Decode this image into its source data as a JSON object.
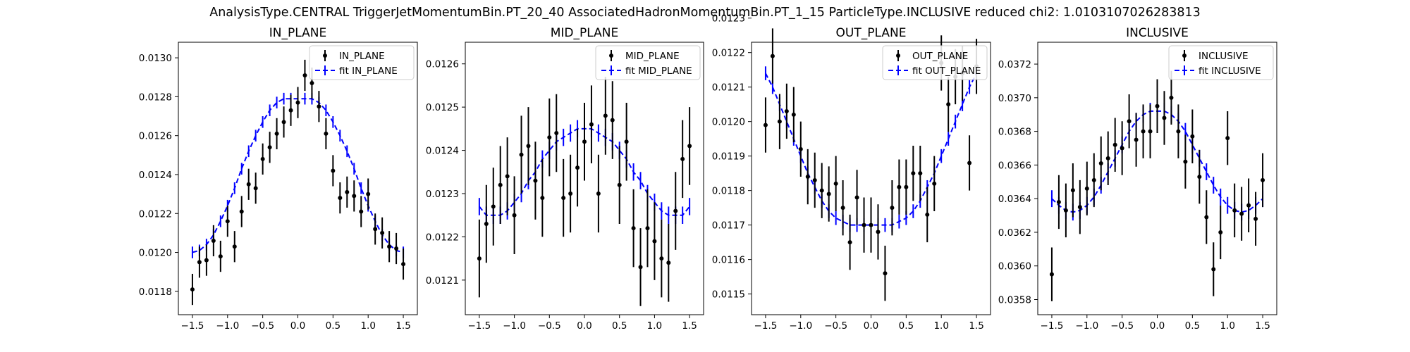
{
  "suptitle": "AnalysisType.CENTRAL TriggerJetMomentumBin.PT_20_40 AssociatedHadronMomentumBin.PT_1_15 ParticleType.INCLUSIVE reduced chi2: 1.0103107026283813",
  "colors": {
    "data": "#000000",
    "fit": "#0000ff"
  },
  "chart_data": [
    {
      "type": "scatter",
      "title": "IN_PLANE",
      "xlim": [
        -1.7,
        1.7
      ],
      "ylim": [
        0.01168,
        0.01308
      ],
      "xticks": [
        -1.5,
        -1.0,
        -0.5,
        0.0,
        0.5,
        1.0,
        1.5
      ],
      "xtick_labels": [
        "−1.5",
        "−1.0",
        "−0.5",
        "0.0",
        "0.5",
        "1.0",
        "1.5"
      ],
      "yticks": [
        0.0118,
        0.012,
        0.0122,
        0.0124,
        0.0126,
        0.0128,
        0.013
      ],
      "ytick_labels": [
        "0.0118",
        "0.0120",
        "0.0122",
        "0.0124",
        "0.0126",
        "0.0128",
        "0.0130"
      ],
      "legend_position": "top-right",
      "legend": [
        "IN_PLANE",
        "fit IN_PLANE"
      ],
      "x": [
        -1.5,
        -1.4,
        -1.3,
        -1.2,
        -1.1,
        -1.0,
        -0.9,
        -0.8,
        -0.7,
        -0.6,
        -0.5,
        -0.4,
        -0.3,
        -0.2,
        -0.1,
        0.0,
        0.1,
        0.2,
        0.3,
        0.4,
        0.5,
        0.6,
        0.7,
        0.8,
        0.9,
        1.0,
        1.1,
        1.2,
        1.3,
        1.4,
        1.5
      ],
      "series": [
        {
          "name": "IN_PLANE",
          "values": [
            0.01181,
            0.01195,
            0.01196,
            0.01206,
            0.01198,
            0.01216,
            0.01203,
            0.01221,
            0.01235,
            0.01233,
            0.01248,
            0.01254,
            0.01261,
            0.01267,
            0.01273,
            0.01277,
            0.01291,
            0.01287,
            0.01275,
            0.01261,
            0.01242,
            0.01228,
            0.01231,
            0.01229,
            0.01221,
            0.0123,
            0.01212,
            0.0121,
            0.01203,
            0.01202,
            0.01194
          ],
          "errors": [
            8e-05,
            8e-05,
            8e-05,
            8e-05,
            8e-05,
            8e-05,
            8e-05,
            8e-05,
            8e-05,
            8e-05,
            8e-05,
            8e-05,
            8e-05,
            8e-05,
            8e-05,
            8e-05,
            8e-05,
            8e-05,
            8e-05,
            8e-05,
            8e-05,
            8e-05,
            8e-05,
            8e-05,
            8e-05,
            8e-05,
            8e-05,
            8e-05,
            8e-05,
            8e-05,
            8e-05
          ]
        },
        {
          "name": "fit IN_PLANE",
          "values": [
            0.012,
            0.01201,
            0.01204,
            0.01209,
            0.01216,
            0.01224,
            0.01233,
            0.01243,
            0.01252,
            0.0126,
            0.01267,
            0.01273,
            0.01277,
            0.01279,
            0.01279,
            0.01279,
            0.01279,
            0.01279,
            0.01277,
            0.01273,
            0.01267,
            0.0126,
            0.01252,
            0.01243,
            0.01233,
            0.01224,
            0.01216,
            0.01209,
            0.01204,
            0.01201,
            0.012
          ],
          "errors": [
            3e-05,
            3e-05,
            3e-05,
            3e-05,
            3e-05,
            3e-05,
            3e-05,
            3e-05,
            3e-05,
            3e-05,
            3e-05,
            3e-05,
            3e-05,
            3e-05,
            3e-05,
            3e-05,
            3e-05,
            3e-05,
            3e-05,
            3e-05,
            3e-05,
            3e-05,
            3e-05,
            3e-05,
            3e-05,
            3e-05,
            3e-05,
            3e-05,
            3e-05,
            3e-05,
            3e-05
          ]
        }
      ]
    },
    {
      "type": "scatter",
      "title": "MID_PLANE",
      "xlim": [
        -1.7,
        1.7
      ],
      "ylim": [
        0.01202,
        0.01265
      ],
      "xticks": [
        -1.5,
        -1.0,
        -0.5,
        0.0,
        0.5,
        1.0,
        1.5
      ],
      "xtick_labels": [
        "−1.5",
        "−1.0",
        "−0.5",
        "0.0",
        "0.5",
        "1.0",
        "1.5"
      ],
      "yticks": [
        0.0121,
        0.0122,
        0.0123,
        0.0124,
        0.0125,
        0.0126
      ],
      "ytick_labels": [
        "0.0121",
        "0.0122",
        "0.0123",
        "0.0124",
        "0.0125",
        "0.0126"
      ],
      "legend_position": "top-right",
      "legend": [
        "MID_PLANE",
        "fit MID_PLANE"
      ],
      "x": [
        -1.5,
        -1.4,
        -1.3,
        -1.2,
        -1.1,
        -1.0,
        -0.9,
        -0.8,
        -0.7,
        -0.6,
        -0.5,
        -0.4,
        -0.3,
        -0.2,
        -0.1,
        0.0,
        0.1,
        0.2,
        0.3,
        0.4,
        0.5,
        0.6,
        0.7,
        0.8,
        0.9,
        1.0,
        1.1,
        1.2,
        1.3,
        1.4,
        1.5
      ],
      "series": [
        {
          "name": "MID_PLANE",
          "values": [
            0.01215,
            0.01223,
            0.01227,
            0.01232,
            0.01234,
            0.01225,
            0.01239,
            0.01241,
            0.01233,
            0.01229,
            0.01243,
            0.01244,
            0.01229,
            0.0123,
            0.01236,
            0.01242,
            0.01246,
            0.0123,
            0.01248,
            0.01247,
            0.01232,
            0.01242,
            0.01222,
            0.01213,
            0.01222,
            0.01219,
            0.01215,
            0.01214,
            0.01226,
            0.01238,
            0.01241
          ],
          "errors": [
            9e-05,
            9e-05,
            9e-05,
            9e-05,
            9e-05,
            9e-05,
            9e-05,
            9e-05,
            9e-05,
            9e-05,
            9e-05,
            9e-05,
            9e-05,
            9e-05,
            9e-05,
            9e-05,
            9e-05,
            9e-05,
            9e-05,
            9e-05,
            9e-05,
            9e-05,
            9e-05,
            9e-05,
            9e-05,
            9e-05,
            9e-05,
            9e-05,
            9e-05,
            9e-05,
            9e-05
          ]
        },
        {
          "name": "fit MID_PLANE",
          "values": [
            0.01227,
            0.01225,
            0.01225,
            0.01225,
            0.01226,
            0.01228,
            0.0123,
            0.01233,
            0.01235,
            0.01238,
            0.0124,
            0.01242,
            0.01243,
            0.01244,
            0.01245,
            0.01245,
            0.01245,
            0.01244,
            0.01243,
            0.01242,
            0.0124,
            0.01238,
            0.01235,
            0.01233,
            0.0123,
            0.01228,
            0.01226,
            0.01225,
            0.01225,
            0.01225,
            0.01227
          ],
          "errors": [
            2e-05,
            2e-05,
            2e-05,
            2e-05,
            2e-05,
            2e-05,
            2e-05,
            2e-05,
            2e-05,
            2e-05,
            2e-05,
            2e-05,
            2e-05,
            2e-05,
            2e-05,
            2e-05,
            2e-05,
            2e-05,
            2e-05,
            2e-05,
            2e-05,
            2e-05,
            2e-05,
            2e-05,
            2e-05,
            2e-05,
            2e-05,
            2e-05,
            2e-05,
            2e-05,
            2e-05
          ]
        }
      ]
    },
    {
      "type": "scatter",
      "title": "OUT_PLANE",
      "xlim": [
        -1.7,
        1.7
      ],
      "ylim": [
        0.01144,
        0.01223
      ],
      "xticks": [
        -1.5,
        -1.0,
        -0.5,
        0.0,
        0.5,
        1.0,
        1.5
      ],
      "xtick_labels": [
        "−1.5",
        "−1.0",
        "−0.5",
        "0.0",
        "0.5",
        "1.0",
        "1.5"
      ],
      "yticks": [
        0.0115,
        0.0116,
        0.0117,
        0.0118,
        0.0119,
        0.012,
        0.0121,
        0.0122,
        0.0123
      ],
      "ytick_labels": [
        "0.0115",
        "0.0116",
        "0.0117",
        "0.0118",
        "0.0119",
        "0.0120",
        "0.0121",
        "0.0122",
        "0.0123"
      ],
      "legend_position": "top-right",
      "legend": [
        "OUT_PLANE",
        "fit OUT_PLANE"
      ],
      "x": [
        -1.5,
        -1.4,
        -1.3,
        -1.2,
        -1.1,
        -1.0,
        -0.9,
        -0.8,
        -0.7,
        -0.6,
        -0.5,
        -0.4,
        -0.3,
        -0.2,
        -0.1,
        0.0,
        0.1,
        0.2,
        0.3,
        0.4,
        0.5,
        0.6,
        0.7,
        0.8,
        0.9,
        1.0,
        1.1,
        1.2,
        1.3,
        1.4,
        1.5
      ],
      "series": [
        {
          "name": "OUT_PLANE",
          "values": [
            0.01199,
            0.01219,
            0.012,
            0.01203,
            0.01202,
            0.01192,
            0.01184,
            0.01183,
            0.0118,
            0.01179,
            0.01182,
            0.01175,
            0.01165,
            0.01178,
            0.0117,
            0.0117,
            0.01168,
            0.01156,
            0.01175,
            0.01181,
            0.01181,
            0.01185,
            0.01185,
            0.01173,
            0.01182,
            0.01217,
            0.01205,
            0.01213,
            0.01214,
            0.01188,
            0.01216
          ],
          "errors": [
            8e-05,
            8e-05,
            8e-05,
            8e-05,
            8e-05,
            8e-05,
            8e-05,
            8e-05,
            8e-05,
            8e-05,
            8e-05,
            8e-05,
            8e-05,
            8e-05,
            8e-05,
            8e-05,
            8e-05,
            8e-05,
            8e-05,
            8e-05,
            8e-05,
            8e-05,
            8e-05,
            8e-05,
            8e-05,
            8e-05,
            8e-05,
            8e-05,
            8e-05,
            8e-05,
            8e-05
          ]
        },
        {
          "name": "fit OUT_PLANE",
          "values": [
            0.01214,
            0.0121,
            0.01205,
            0.012,
            0.01195,
            0.0119,
            0.01185,
            0.01181,
            0.01177,
            0.01174,
            0.01172,
            0.01171,
            0.0117,
            0.0117,
            0.0117,
            0.0117,
            0.0117,
            0.0117,
            0.0117,
            0.01171,
            0.01172,
            0.01174,
            0.01177,
            0.01181,
            0.01185,
            0.0119,
            0.01195,
            0.012,
            0.01205,
            0.0121,
            0.01214
          ],
          "errors": [
            2e-05,
            2e-05,
            2e-05,
            2e-05,
            2e-05,
            2e-05,
            2e-05,
            2e-05,
            2e-05,
            2e-05,
            2e-05,
            2e-05,
            2e-05,
            2e-05,
            2e-05,
            2e-05,
            2e-05,
            2e-05,
            2e-05,
            2e-05,
            2e-05,
            2e-05,
            2e-05,
            2e-05,
            2e-05,
            2e-05,
            2e-05,
            2e-05,
            2e-05,
            2e-05,
            2e-05
          ]
        }
      ]
    },
    {
      "type": "scatter",
      "title": "INCLUSIVE",
      "xlim": [
        -1.7,
        1.7
      ],
      "ylim": [
        0.03571,
        0.03733
      ],
      "xticks": [
        -1.5,
        -1.0,
        -0.5,
        0.0,
        0.5,
        1.0,
        1.5
      ],
      "xtick_labels": [
        "−1.5",
        "−1.0",
        "−0.5",
        "0.0",
        "0.5",
        "1.0",
        "1.5"
      ],
      "yticks": [
        0.0358,
        0.036,
        0.0362,
        0.0364,
        0.0366,
        0.0368,
        0.037,
        0.0372
      ],
      "ytick_labels": [
        "0.0358",
        "0.0360",
        "0.0362",
        "0.0364",
        "0.0366",
        "0.0368",
        "0.0370",
        "0.0372"
      ],
      "legend_position": "top-right",
      "legend": [
        "INCLUSIVE",
        "fit INCLUSIVE"
      ],
      "x": [
        -1.5,
        -1.4,
        -1.3,
        -1.2,
        -1.1,
        -1.0,
        -0.9,
        -0.8,
        -0.7,
        -0.6,
        -0.5,
        -0.4,
        -0.3,
        -0.2,
        -0.1,
        0.0,
        0.1,
        0.2,
        0.3,
        0.4,
        0.5,
        0.6,
        0.7,
        0.8,
        0.9,
        1.0,
        1.1,
        1.2,
        1.3,
        1.4,
        1.5
      ],
      "series": [
        {
          "name": "INCLUSIVE",
          "values": [
            0.03595,
            0.03638,
            0.03633,
            0.03645,
            0.03635,
            0.03646,
            0.03651,
            0.03661,
            0.03664,
            0.03672,
            0.0367,
            0.03686,
            0.03675,
            0.0368,
            0.0368,
            0.03695,
            0.03688,
            0.037,
            0.0368,
            0.03662,
            0.03677,
            0.03653,
            0.03629,
            0.03598,
            0.0362,
            0.03676,
            0.03633,
            0.03631,
            0.03636,
            0.03628,
            0.03651
          ],
          "errors": [
            0.00016,
            0.00016,
            0.00016,
            0.00016,
            0.00016,
            0.00016,
            0.00016,
            0.00016,
            0.00016,
            0.00016,
            0.00016,
            0.00016,
            0.00016,
            0.00016,
            0.00016,
            0.00016,
            0.00016,
            0.00016,
            0.00016,
            0.00016,
            0.00016,
            0.00016,
            0.00016,
            0.00016,
            0.00016,
            0.00016,
            0.00016,
            0.00016,
            0.00016,
            0.00016,
            0.00016
          ]
        },
        {
          "name": "fit INCLUSIVE",
          "values": [
            0.0364,
            0.03636,
            0.03633,
            0.03632,
            0.03633,
            0.03636,
            0.03641,
            0.03648,
            0.03656,
            0.03664,
            0.03672,
            0.0368,
            0.03686,
            0.0369,
            0.03692,
            0.03692,
            0.03692,
            0.0369,
            0.03686,
            0.0368,
            0.03672,
            0.03664,
            0.03656,
            0.03648,
            0.03641,
            0.03636,
            0.03633,
            0.03632,
            0.03633,
            0.03636,
            0.0364
          ],
          "errors": [
            5e-05,
            5e-05,
            5e-05,
            5e-05,
            5e-05,
            5e-05,
            5e-05,
            5e-05,
            5e-05,
            5e-05,
            5e-05,
            5e-05,
            5e-05,
            5e-05,
            5e-05,
            5e-05,
            5e-05,
            5e-05,
            5e-05,
            5e-05,
            5e-05,
            5e-05,
            5e-05,
            5e-05,
            5e-05,
            5e-05,
            5e-05,
            5e-05,
            5e-05,
            5e-05,
            5e-05
          ]
        }
      ]
    }
  ]
}
